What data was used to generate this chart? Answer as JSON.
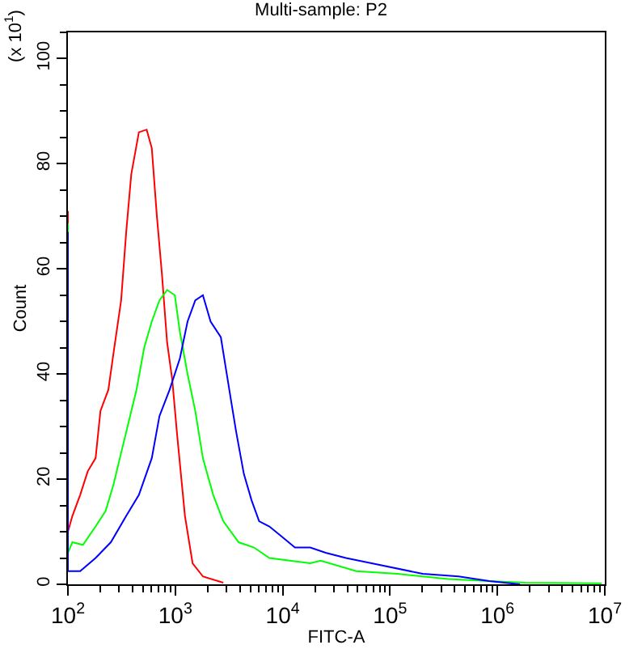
{
  "chart_data": {
    "type": "line",
    "title": "Multi-sample: P2",
    "xlabel": "FITC-A",
    "ylabel": "Count",
    "annotations": [
      "(x 10$^{1}$)"
    ],
    "log": "x",
    "grid": false,
    "line_style": "solid",
    "marker": "none",
    "xlim": [
      100,
      10000000
    ],
    "ylim": [
      0,
      105
    ],
    "xticks": [
      {
        "value": 100,
        "label": "10$^{2}$"
      },
      {
        "value": 1000,
        "label": "10$^{3}$"
      },
      {
        "value": 10000,
        "label": "10$^{4}$"
      },
      {
        "value": 100000,
        "label": "10$^{5}$"
      },
      {
        "value": 1000000,
        "label": "10$^{6}$"
      },
      {
        "value": 10000000,
        "label": "10$^{7}$"
      }
    ],
    "yticks": [
      0,
      20,
      40,
      60,
      80,
      100
    ],
    "series": [
      {
        "color": "#ff0000",
        "x": [
          100,
          100,
          110,
          130,
          153,
          181,
          201,
          238,
          266,
          313,
          349,
          389,
          458,
          541,
          604,
          674,
          751,
          839,
          936,
          1045,
          1230,
          1449,
          1807,
          2800
        ],
        "values": [
          71,
          10,
          13,
          17,
          21.5,
          24,
          33,
          37,
          44,
          54,
          67,
          78,
          86,
          86.5,
          83,
          70,
          59,
          46,
          39,
          28,
          13,
          4,
          1.5,
          0.3
        ]
      },
      {
        "color": "#00ff00",
        "x": [
          100,
          100,
          110,
          138,
          181,
          225,
          266,
          313,
          369,
          435,
          513,
          604,
          712,
          839,
          990,
          1104,
          1301,
          1534,
          1807,
          2254,
          2800,
          3890,
          5408,
          7516,
          11670,
          18070,
          22550,
          48500,
          116700,
          349000,
          839000,
          1807000,
          9350000
        ],
        "values": [
          68.7,
          6,
          8,
          7.5,
          11,
          14,
          19,
          25,
          31,
          37,
          45,
          50,
          54,
          56,
          55,
          48,
          40,
          33,
          24,
          17,
          12,
          8,
          7,
          5,
          4.5,
          4,
          4.5,
          2.5,
          2,
          1,
          0.6,
          0.3,
          0.2
        ]
      },
      {
        "color": "#0000ff",
        "x": [
          100,
          100,
          130,
          181,
          251,
          349,
          458,
          604,
          712,
          885,
          1104,
          1301,
          1534,
          1807,
          2131,
          2656,
          2961,
          3302,
          3689,
          4351,
          5129,
          6038,
          7516,
          9908,
          13000,
          18070,
          25120,
          38900,
          67400,
          201400,
          435000,
          839000,
          1622000
        ],
        "values": [
          67,
          2.5,
          2.5,
          5,
          8,
          13,
          17,
          24,
          32,
          37,
          43,
          50,
          54,
          55,
          50,
          47,
          41,
          35,
          29,
          21,
          16,
          12,
          11,
          9,
          7,
          7,
          6,
          5,
          4,
          2,
          1.5,
          0.6,
          0
        ]
      }
    ]
  }
}
